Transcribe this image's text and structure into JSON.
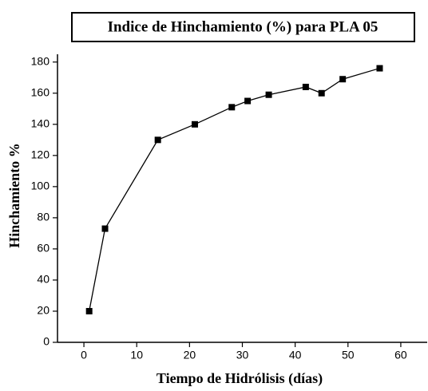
{
  "chart_data": {
    "type": "line",
    "title": "Indice de Hinchamiento (%) para PLA 05",
    "xlabel": "Tiempo de Hidrólisis (días)",
    "ylabel": "Hinchamiento %",
    "x": [
      1,
      4,
      14,
      21,
      28,
      31,
      35,
      42,
      45,
      49,
      56
    ],
    "series": [
      {
        "name": "PLA 05",
        "color": "#000000",
        "values": [
          20,
          73,
          130,
          140,
          151,
          155,
          159,
          164,
          160,
          169,
          176
        ]
      }
    ],
    "xlim": [
      -5,
      65
    ],
    "xticks": [
      0,
      10,
      20,
      30,
      40,
      50,
      60
    ],
    "ylim": [
      0,
      185
    ],
    "yticks": [
      0,
      20,
      40,
      60,
      80,
      100,
      120,
      140,
      160,
      180
    ]
  }
}
